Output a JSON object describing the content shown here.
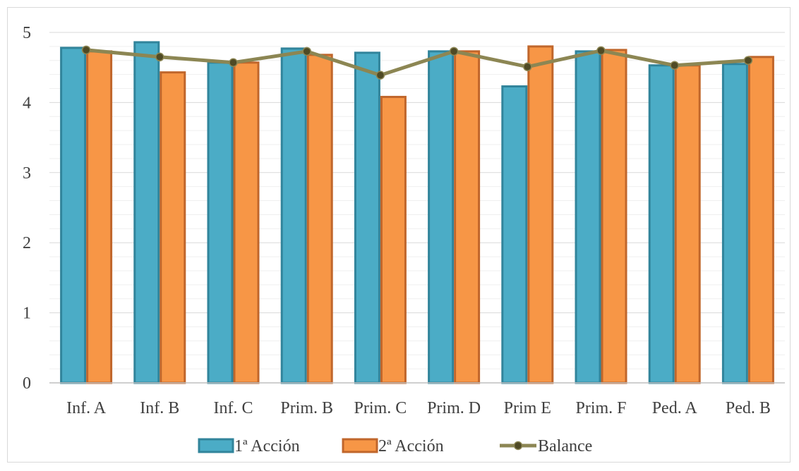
{
  "chart_data": {
    "type": "bar",
    "title": "",
    "xlabel": "",
    "ylabel": "",
    "ylim": [
      0,
      5
    ],
    "yticks": [
      0,
      1,
      2,
      3,
      4,
      5
    ],
    "grid": true,
    "legend_position": "bottom",
    "categories": [
      "Inf. A",
      "Inf. B",
      "Inf. C",
      "Prim. B",
      "Prim. C",
      "Prim. D",
      "Prim E",
      "Prim. F",
      "Ped. A",
      "Ped. B"
    ],
    "series": [
      {
        "name": "1ª Acción",
        "type": "bar",
        "color": "#4BACC6",
        "border": "#31849B",
        "values": [
          4.78,
          4.86,
          4.57,
          4.77,
          4.71,
          4.73,
          4.23,
          4.73,
          4.53,
          4.55
        ]
      },
      {
        "name": "2ª Acción",
        "type": "bar",
        "color": "#F79646",
        "border": "#C0662B",
        "values": [
          4.73,
          4.43,
          4.57,
          4.68,
          4.08,
          4.73,
          4.8,
          4.75,
          4.53,
          4.65
        ]
      },
      {
        "name": "Balance",
        "type": "line",
        "color": "#8C8653",
        "marker": "#4F4A25",
        "values": [
          4.75,
          4.65,
          4.57,
          4.73,
          4.39,
          4.73,
          4.51,
          4.74,
          4.53,
          4.6
        ]
      }
    ]
  }
}
